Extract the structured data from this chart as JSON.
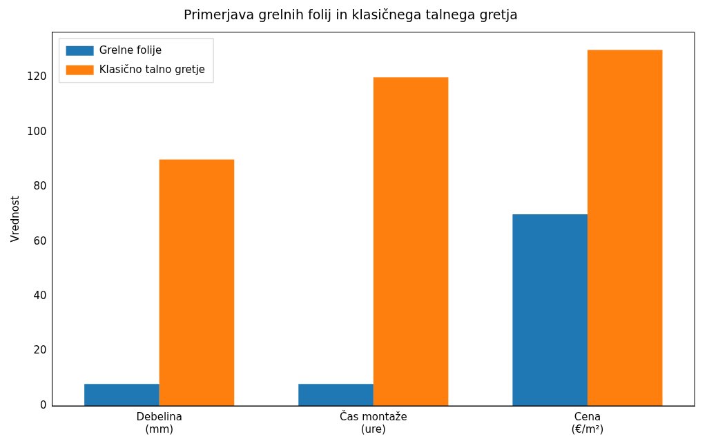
{
  "chart_data": {
    "type": "bar",
    "title": "Primerjava grelnih folij in klasičnega talnega gretja",
    "ylabel": "Vrednost",
    "categories": [
      "Debelina\n(mm)",
      "Čas montaže\n(ure)",
      "Cena\n(€/m²)"
    ],
    "series": [
      {
        "name": "Grelne folije",
        "color": "#1f77b4",
        "values": [
          8,
          8,
          70
        ]
      },
      {
        "name": "Klasično talno gretje",
        "color": "#ff7f0e",
        "values": [
          90,
          120,
          130
        ]
      }
    ],
    "ylim": [
      0,
      136.5
    ],
    "yticks": [
      0,
      20,
      40,
      60,
      80,
      100,
      120
    ],
    "grid": false,
    "legend": "top left"
  }
}
